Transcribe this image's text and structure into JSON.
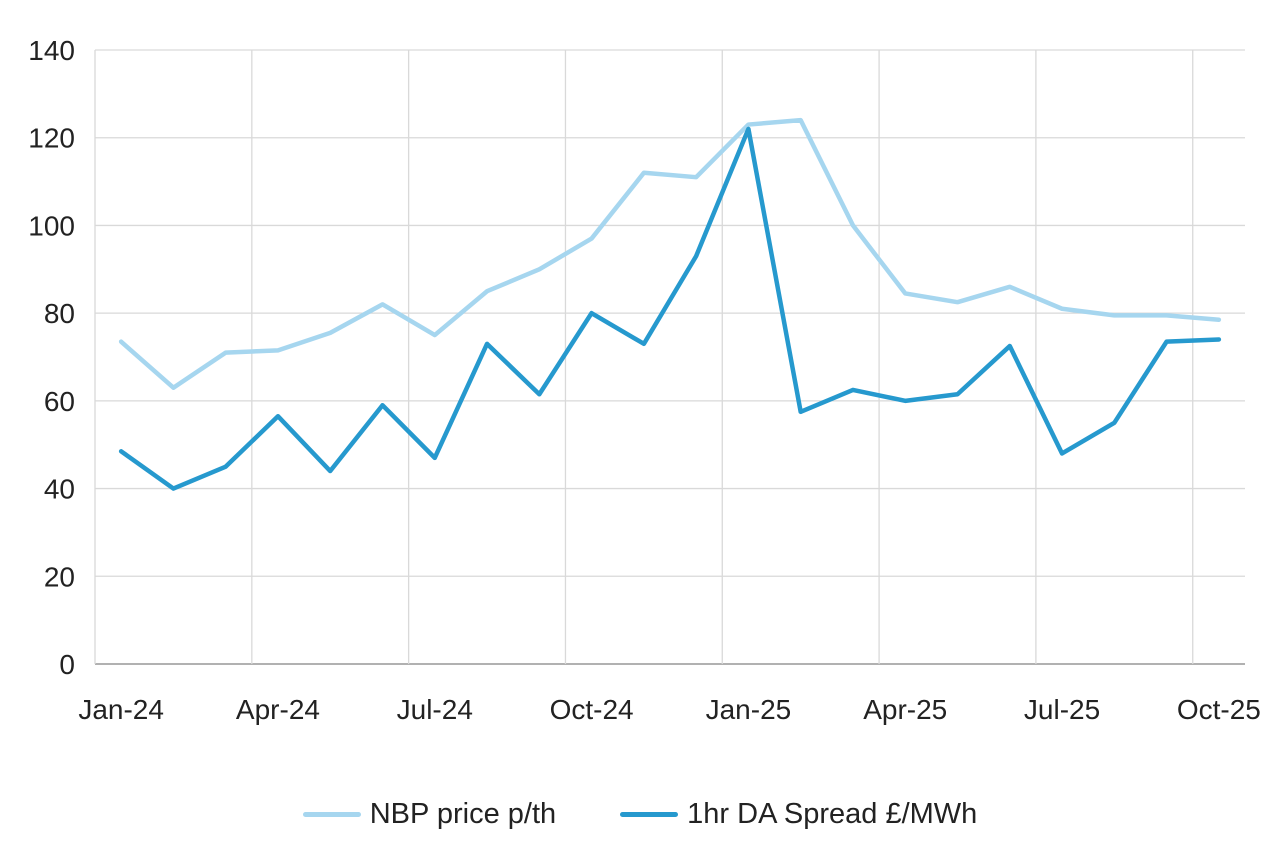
{
  "chart_data": {
    "type": "line",
    "title": "",
    "x": [
      "Jan-24",
      "Feb-24",
      "Mar-24",
      "Apr-24",
      "May-24",
      "Jun-24",
      "Jul-24",
      "Aug-24",
      "Sep-24",
      "Oct-24",
      "Nov-24",
      "Dec-24",
      "Jan-25",
      "Feb-25",
      "Mar-25",
      "Apr-25",
      "May-25",
      "Jun-25",
      "Jul-25",
      "Aug-25",
      "Sep-25",
      "Oct-25"
    ],
    "x_tick_labels": [
      "Jan-24",
      "Apr-24",
      "Jul-24",
      "Oct-24",
      "Jan-25",
      "Apr-25",
      "Jul-25",
      "Oct-25"
    ],
    "x_tick_interval": 3,
    "y_ticks": [
      0,
      20,
      40,
      60,
      80,
      100,
      120,
      140
    ],
    "ylim": [
      0,
      140
    ],
    "grid": true,
    "legend_position": "bottom",
    "series": [
      {
        "name": "NBP price p/th",
        "color": "#A6D6EF",
        "values": [
          73.5,
          63,
          71,
          71.5,
          75.5,
          82,
          75,
          85,
          90,
          97,
          112,
          111,
          123,
          124,
          100,
          84.5,
          82.5,
          86,
          81,
          79.5,
          79.5,
          78.5
        ]
      },
      {
        "name": "1hr DA Spread £/MWh",
        "color": "#2699CE",
        "values": [
          48.5,
          40,
          45,
          56.5,
          44,
          59,
          47,
          73,
          61.5,
          80,
          73,
          93,
          122,
          57.5,
          62.5,
          60,
          61.5,
          72.5,
          48,
          55,
          73.5,
          74
        ]
      }
    ],
    "colors": {
      "gridline": "#D9D9D9",
      "axis_line": "#A6A6A6",
      "text": "#222222",
      "background": "#FFFFFF"
    }
  }
}
